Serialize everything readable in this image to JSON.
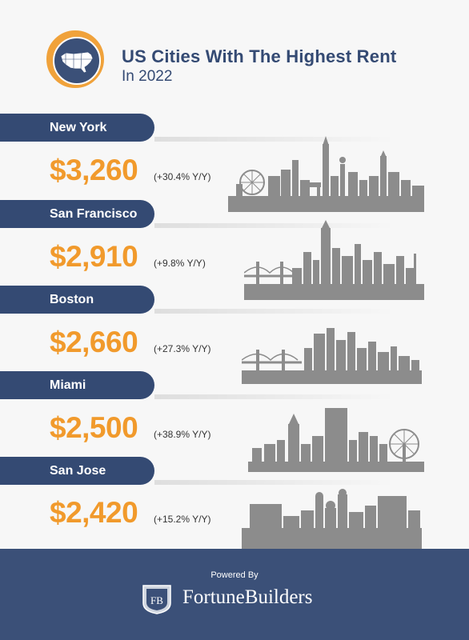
{
  "header": {
    "title_line1": "US Cities With The Highest Rent",
    "title_line2": "In 2022",
    "badge_icon": "us-map-icon"
  },
  "colors": {
    "navy": "#344a73",
    "orange": "#f19a2c",
    "skyline": "#8c8c8c",
    "footer": "#3b5078"
  },
  "chart_data": {
    "type": "table",
    "title": "US Cities With The Highest Rent",
    "subtitle": "In 2022",
    "categories": [
      "New York",
      "San Francisco",
      "Boston",
      "Miami",
      "San Jose"
    ],
    "values": [
      3260,
      2910,
      2660,
      2500,
      2420
    ],
    "yoy_change_percent": [
      30.4,
      9.8,
      27.3,
      38.9,
      15.2
    ],
    "rows": [
      {
        "city": "New York",
        "price": "$3,260",
        "change": "(+30.4% Y/Y)"
      },
      {
        "city": "San Francisco",
        "price": "$2,910",
        "change": "(+9.8% Y/Y)"
      },
      {
        "city": "Boston",
        "price": "$2,660",
        "change": "(+27.3% Y/Y)"
      },
      {
        "city": "Miami",
        "price": "$2,500",
        "change": "(+38.9% Y/Y)"
      },
      {
        "city": "San Jose",
        "price": "$2,420",
        "change": "(+15.2% Y/Y)"
      }
    ]
  },
  "footer": {
    "powered_by": "Powered By",
    "brand_logo_text": "FB",
    "brand_name": "FortuneBuilders"
  }
}
